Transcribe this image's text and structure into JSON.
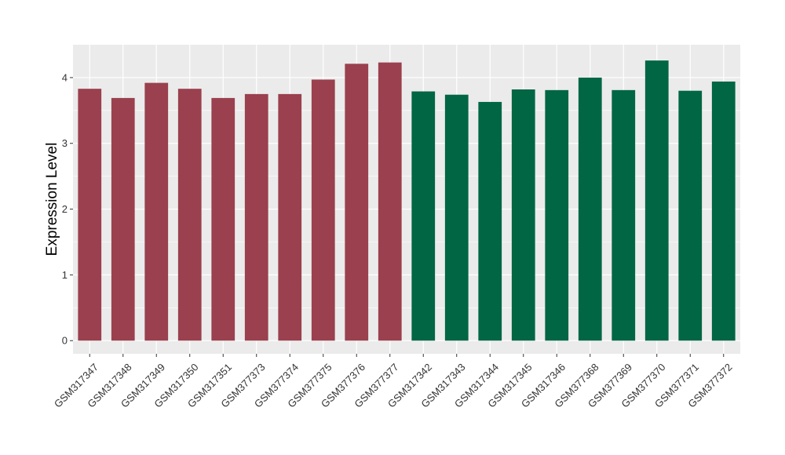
{
  "chart_data": {
    "type": "bar",
    "title": "",
    "xlabel": "",
    "ylabel": "Expression Level",
    "ylim": [
      -0.2,
      4.5
    ],
    "yticks": [
      0,
      1,
      2,
      3,
      4
    ],
    "grid": true,
    "categories": [
      "GSM317347",
      "GSM317348",
      "GSM317349",
      "GSM317350",
      "GSM317351",
      "GSM377373",
      "GSM377374",
      "GSM377375",
      "GSM377376",
      "GSM377377",
      "GSM317342",
      "GSM317343",
      "GSM317344",
      "GSM317345",
      "GSM317346",
      "GSM377368",
      "GSM377369",
      "GSM377370",
      "GSM377371",
      "GSM377372"
    ],
    "values": [
      3.83,
      3.69,
      3.92,
      3.83,
      3.69,
      3.75,
      3.75,
      3.97,
      4.21,
      4.23,
      3.79,
      3.74,
      3.63,
      3.82,
      3.81,
      4.0,
      3.81,
      4.26,
      3.8,
      3.94
    ],
    "bar_colors": [
      "#9a404e",
      "#9a404e",
      "#9a404e",
      "#9a404e",
      "#9a404e",
      "#9a404e",
      "#9a404e",
      "#9a404e",
      "#9a404e",
      "#9a404e",
      "#006644",
      "#006644",
      "#006644",
      "#006644",
      "#006644",
      "#006644",
      "#006644",
      "#006644",
      "#006644",
      "#006644"
    ],
    "panel_background": "#ebebeb",
    "grid_color": "#ffffff"
  }
}
